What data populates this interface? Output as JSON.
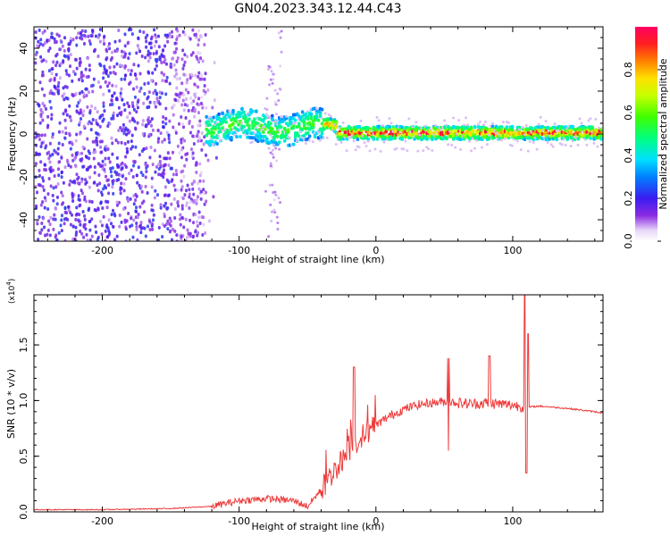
{
  "title": "GN04.2023.343.12.44.C43",
  "chart_data": [
    {
      "type": "heatmap",
      "name": "spectrogram",
      "xlabel": "Height of straight line (km)",
      "ylabel": "Frequency (Hz)",
      "xlim": [
        -250,
        166
      ],
      "ylim": [
        -50,
        50
      ],
      "xticks": [
        -200,
        -100,
        0,
        100
      ],
      "xtick_labels": [
        "-200",
        "-100",
        "0",
        "100"
      ],
      "yticks": [
        -40,
        -20,
        0,
        20,
        40
      ],
      "ytick_labels": [
        "-40",
        "-20",
        "0",
        "20",
        "40"
      ],
      "colorbar": {
        "label": "Normalized spectral amplitude",
        "range": [
          0,
          1
        ],
        "ticks": [
          0.0,
          0.2,
          0.4,
          0.6,
          0.8
        ],
        "tick_labels": [
          "0.0",
          "0.2",
          "0.4",
          "0.6",
          "0.8"
        ],
        "colormap": "rainbow"
      },
      "noise_region_km": [
        -250,
        -125
      ],
      "signal_band_hz": [
        -3,
        3
      ],
      "peak_amplitude_region_km": [
        -30,
        166
      ]
    },
    {
      "type": "line",
      "name": "snr",
      "xlabel": "Height of straight line (km)",
      "ylabel": "SNR (10 * v/v)",
      "scale_label": "(x10",
      "scale_exponent": "4",
      "xlim": [
        -250,
        166
      ],
      "ylim": [
        0,
        1.95
      ],
      "xticks": [
        -200,
        -100,
        0,
        100
      ],
      "xtick_labels": [
        "-200",
        "-100",
        "0",
        "100"
      ],
      "yticks": [
        0.0,
        0.5,
        1.0,
        1.5
      ],
      "ytick_labels": [
        "0.0",
        "0.5",
        "1.0",
        "1.5"
      ],
      "color": "#ee3a3a",
      "x": [
        -250,
        -200,
        -150,
        -120,
        -100,
        -80,
        -60,
        -50,
        -40,
        -30,
        -20,
        -10,
        0,
        10,
        20,
        30,
        40,
        50,
        60,
        70,
        80,
        90,
        100,
        110,
        120,
        140,
        166
      ],
      "y": [
        0.02,
        0.02,
        0.03,
        0.05,
        0.1,
        0.12,
        0.1,
        0.05,
        0.2,
        0.38,
        0.55,
        0.68,
        0.78,
        0.86,
        0.92,
        0.96,
        0.98,
        0.99,
        0.98,
        0.97,
        0.98,
        0.97,
        0.96,
        0.94,
        0.95,
        0.93,
        0.89
      ],
      "spikes": [
        {
          "x": -16,
          "y": 1.3
        },
        {
          "x": 53,
          "y": 1.38
        },
        {
          "x": 83,
          "y": 1.4
        },
        {
          "x": 109,
          "y": 1.95
        },
        {
          "x": 111,
          "y": 1.6
        }
      ]
    }
  ]
}
